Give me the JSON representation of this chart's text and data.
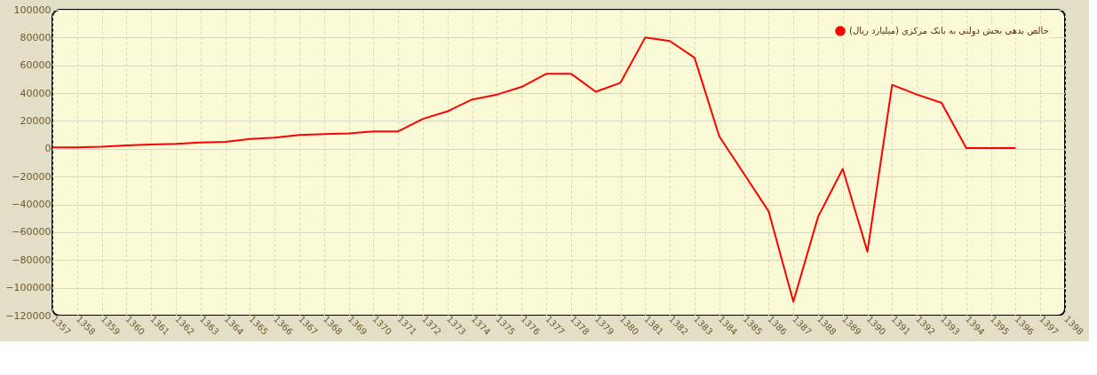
{
  "chart_data": {
    "type": "line",
    "categories": [
      "1357",
      "1358",
      "1359",
      "1360",
      "1361",
      "1362",
      "1363",
      "1364",
      "1365",
      "1366",
      "1367",
      "1368",
      "1369",
      "1370",
      "1371",
      "1372",
      "1373",
      "1374",
      "1375",
      "1376",
      "1377",
      "1378",
      "1379",
      "1380",
      "1381",
      "1382",
      "1383",
      "1384",
      "1385",
      "1386",
      "1387",
      "1388",
      "1389",
      "1390",
      "1391",
      "1392",
      "1393",
      "1394",
      "1395",
      "1396",
      "1397",
      "1398"
    ],
    "series": [
      {
        "name": "خالص بدهی بخش دولتی به بانک مرکزی (میلیارد ریال)",
        "color": "#ff0000",
        "values": [
          1000,
          1000,
          1500,
          2500,
          3000,
          3500,
          4500,
          5000,
          7000,
          8000,
          10000,
          10500,
          11000,
          12500,
          12500,
          21500,
          27000,
          35500,
          39000,
          44500,
          54000,
          54000,
          41000,
          47500,
          80000,
          77500,
          65500,
          9000,
          -18000,
          -45000,
          -110000,
          -49000,
          -14500,
          -74000,
          46000,
          39000,
          33000,
          500,
          500,
          500,
          null,
          null
        ]
      }
    ],
    "ylim": [
      -120000,
      100000
    ],
    "yticks": [
      -120000,
      -100000,
      -80000,
      -60000,
      -40000,
      -20000,
      0,
      20000,
      40000,
      60000,
      80000,
      100000
    ],
    "grid": true,
    "legend": "top right",
    "marker": "none",
    "line_style": "solid"
  }
}
